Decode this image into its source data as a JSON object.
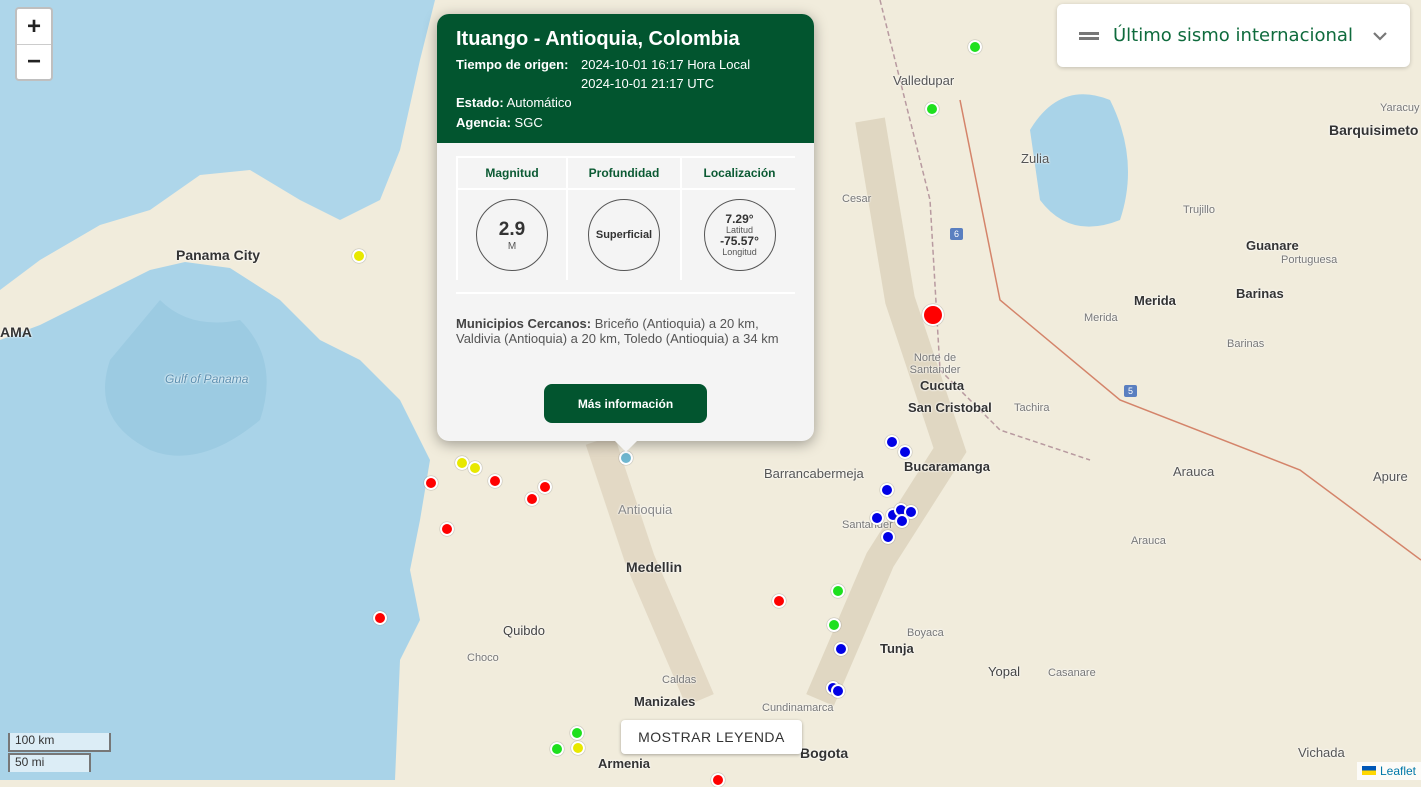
{
  "map": {
    "labels": {
      "panama_city": "Panama City",
      "gulf": "Gulf of Panama",
      "ama": "AMA",
      "valledupar": "Valledupar",
      "zulia": "Zulia",
      "cesar": "Cesar",
      "barquisimeto": "Barquisimeto",
      "yaracuy": "Yaracuy",
      "trujillo": "Trujillo",
      "guanare": "Guanare",
      "portuguesa": "Portuguesa",
      "merida": "Merida",
      "merida2": "Merida",
      "barinas": "Barinas",
      "barinas2": "Barinas",
      "norte": "Norte de Santander",
      "cucuta": "Cucuta",
      "san_cristobal": "San Cristobal",
      "tachira": "Tachira",
      "barranca": "Barrancabermeja",
      "bucaramanga": "Bucaramanga",
      "santander": "Santander",
      "arauca": "Arauca",
      "arauca2": "Arauca",
      "apure": "Apure",
      "antioquia": "Antioquia",
      "medellin": "Medellin",
      "quibdo": "Quibdo",
      "choco": "Choco",
      "boyaca": "Boyaca",
      "tunja": "Tunja",
      "yopal": "Yopal",
      "casanare": "Casanare",
      "caldas": "Caldas",
      "manizales": "Manizales",
      "cundinamarca": "Cundinamarca",
      "bogota": "Bogota",
      "armenia": "Armenia",
      "vichada": "Vichada",
      "route6": "6",
      "route5": "5"
    },
    "marker_colors": {
      "red": "#ff0000",
      "yellow": "#e8e800",
      "green": "#1ee01e",
      "blue": "#0000e6",
      "selected": "#6fb7d0"
    }
  },
  "zoom": {
    "in": "+",
    "out": "−"
  },
  "latest": {
    "icon": "menu-icon",
    "title": "Último sismo internacional",
    "chevron": "chevron-down-icon"
  },
  "popup": {
    "title": "Ituango - Antioquia, Colombia",
    "origin_label": "Tiempo de origen:",
    "local_time": "2024-10-01 16:17 Hora Local",
    "utc_time": "2024-10-01 21:17 UTC",
    "status_label": "Estado:",
    "status": "Automático",
    "agency_label": "Agencia:",
    "agency": "SGC",
    "mag_header": "Magnitud",
    "depth_header": "Profundidad",
    "loc_header": "Localización",
    "magnitude": "2.9",
    "mag_unit": "M",
    "depth": "Superficial",
    "lat": "7.29°",
    "lat_label": "Latitud",
    "lon": "-75.57°",
    "lon_label": "Longitud",
    "nearby_label": "Municipios Cercanos:",
    "nearby": "Briceño (Antioquia) a 20 km, Valdivia (Antioquia) a 20 km, Toledo (Antioquia) a 34 km",
    "button": "Más información"
  },
  "legend_button": "MOSTRAR LEYENDA",
  "scale": {
    "km": "100 km",
    "mi": "50 mi"
  },
  "attribution": "Leaflet"
}
